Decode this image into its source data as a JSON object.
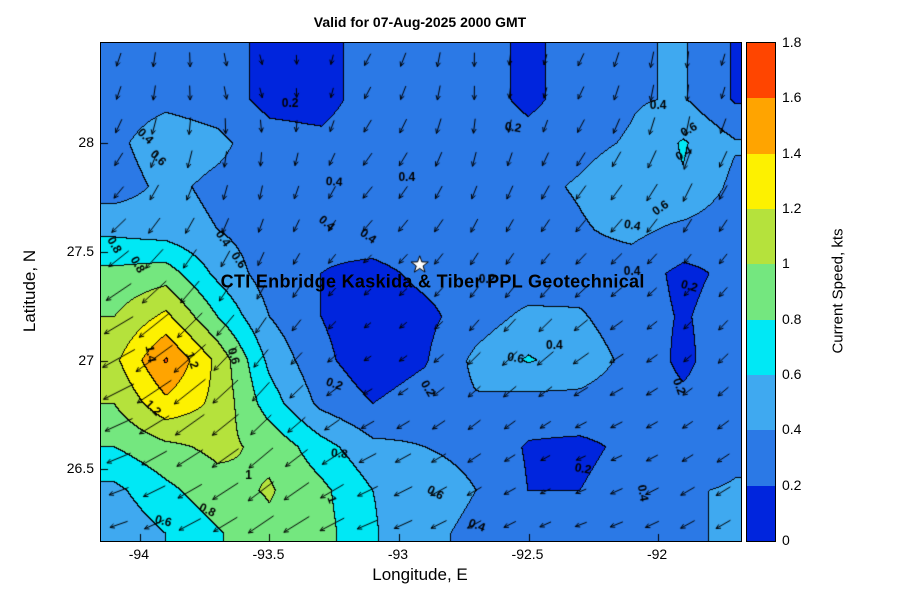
{
  "chart_data": {
    "type": "heatmap",
    "subtype": "filled-contour-with-quiver",
    "title": "Valid for 07-Aug-2025 2000 GMT",
    "xlabel": "Longitude, E",
    "ylabel": "Latitude, N",
    "units": "kts",
    "xlim": [
      -94.15,
      -91.68
    ],
    "ylim": [
      26.17,
      28.46
    ],
    "x_ticks": {
      "values": [
        -94,
        -93.5,
        -93,
        -92.5,
        -92
      ],
      "labels": [
        "-94",
        "-93.5",
        "-93",
        "-92.5",
        "-92"
      ]
    },
    "y_ticks": {
      "values": [
        26.5,
        27,
        27.5,
        28
      ],
      "labels": [
        "26.5",
        "27",
        "27.5",
        "28"
      ]
    },
    "levels": [
      0,
      0.2,
      0.4,
      0.6,
      0.8,
      1.0,
      1.2,
      1.4,
      1.6,
      1.8
    ],
    "colors": [
      "#0025dd",
      "#2b79e6",
      "#3fa9f0",
      "#00e8f5",
      "#74e77f",
      "#b5e23c",
      "#fdf100",
      "#ffa400",
      "#ff4500"
    ],
    "grid": {
      "lons": [
        -94.1,
        -93.9,
        -93.7,
        -93.5,
        -93.3,
        -93.1,
        -92.9,
        -92.7,
        -92.5,
        -92.3,
        -92.1,
        -91.9,
        -91.7
      ],
      "lats": [
        28.2,
        28.0,
        27.8,
        27.6,
        27.4,
        27.2,
        27.0,
        26.8,
        26.6,
        26.4,
        26.2
      ],
      "speed_kts": [
        [
          0.3,
          0.35,
          0.3,
          0.14,
          0.12,
          0.3,
          0.35,
          0.3,
          0.15,
          0.3,
          0.38,
          0.42,
          0.18
        ],
        [
          0.35,
          0.52,
          0.45,
          0.28,
          0.25,
          0.35,
          0.4,
          0.35,
          0.28,
          0.35,
          0.42,
          0.62,
          0.42
        ],
        [
          0.3,
          0.45,
          0.35,
          0.3,
          0.3,
          0.35,
          0.32,
          0.3,
          0.35,
          0.42,
          0.52,
          0.58,
          0.35
        ],
        [
          0.55,
          0.5,
          0.4,
          0.3,
          0.26,
          0.32,
          0.35,
          0.35,
          0.3,
          0.38,
          0.45,
          0.35,
          0.28
        ],
        [
          0.85,
          0.9,
          0.55,
          0.3,
          0.2,
          0.14,
          0.25,
          0.3,
          0.25,
          0.32,
          0.3,
          0.15,
          0.25
        ],
        [
          1.0,
          1.25,
          0.8,
          0.4,
          0.2,
          0.08,
          0.15,
          0.3,
          0.45,
          0.42,
          0.3,
          0.18,
          0.3
        ],
        [
          1.15,
          1.62,
          1.15,
          0.55,
          0.25,
          0.08,
          0.18,
          0.45,
          0.62,
          0.5,
          0.35,
          0.15,
          0.35
        ],
        [
          1.0,
          1.35,
          1.15,
          0.7,
          0.35,
          0.2,
          0.3,
          0.38,
          0.32,
          0.35,
          0.3,
          0.25,
          0.3
        ],
        [
          0.8,
          0.95,
          1.05,
          0.95,
          0.68,
          0.45,
          0.4,
          0.35,
          0.18,
          0.15,
          0.25,
          0.22,
          0.35
        ],
        [
          0.55,
          0.75,
          0.92,
          1.02,
          0.85,
          0.6,
          0.5,
          0.4,
          0.2,
          0.2,
          0.3,
          0.38,
          0.42
        ],
        [
          0.45,
          0.6,
          0.78,
          0.95,
          0.88,
          0.62,
          0.45,
          0.35,
          0.25,
          0.25,
          0.32,
          0.38,
          0.42
        ]
      ],
      "flow_dir_deg_ccw_from_east": [
        [
          250,
          265,
          280,
          285,
          260,
          240,
          255,
          270,
          260,
          245,
          255,
          265,
          250
        ],
        [
          240,
          255,
          265,
          270,
          250,
          235,
          245,
          260,
          250,
          240,
          245,
          255,
          245
        ],
        [
          230,
          245,
          255,
          260,
          245,
          230,
          240,
          250,
          245,
          235,
          235,
          245,
          240
        ],
        [
          222,
          235,
          245,
          250,
          238,
          228,
          232,
          242,
          238,
          230,
          228,
          238,
          235
        ],
        [
          215,
          228,
          238,
          245,
          232,
          222,
          228,
          235,
          232,
          225,
          222,
          230,
          230
        ],
        [
          210,
          222,
          230,
          238,
          228,
          218,
          222,
          230,
          228,
          220,
          215,
          225,
          228
        ],
        [
          208,
          218,
          225,
          232,
          222,
          212,
          218,
          225,
          222,
          215,
          212,
          220,
          225
        ],
        [
          205,
          215,
          220,
          228,
          218,
          210,
          215,
          220,
          218,
          210,
          208,
          215,
          220
        ],
        [
          202,
          212,
          215,
          222,
          215,
          208,
          210,
          215,
          212,
          205,
          205,
          212,
          215
        ],
        [
          200,
          208,
          212,
          218,
          212,
          205,
          208,
          210,
          208,
          202,
          205,
          210,
          212
        ],
        [
          198,
          205,
          210,
          214,
          208,
          202,
          205,
          208,
          205,
          200,
          202,
          208,
          210
        ]
      ]
    },
    "quiver": {
      "cols": 18,
      "rows": 15
    },
    "contour_labels": [
      {
        "t": "0.2",
        "lon": -93.42,
        "lat": 28.18,
        "rot": 0
      },
      {
        "t": "0.2",
        "lon": -92.56,
        "lat": 28.07,
        "rot": 10
      },
      {
        "t": "0.4",
        "lon": -92.0,
        "lat": 28.17,
        "rot": 0
      },
      {
        "t": "0.6",
        "lon": -91.88,
        "lat": 28.06,
        "rot": -30
      },
      {
        "t": "0.4",
        "lon": -91.9,
        "lat": 27.95,
        "rot": -30
      },
      {
        "t": "0.4",
        "lon": -93.98,
        "lat": 28.03,
        "rot": 45
      },
      {
        "t": "0.6",
        "lon": -93.93,
        "lat": 27.93,
        "rot": 45
      },
      {
        "t": "0.4",
        "lon": -93.25,
        "lat": 27.82,
        "rot": 5
      },
      {
        "t": "0.4",
        "lon": -92.97,
        "lat": 27.84,
        "rot": 0
      },
      {
        "t": "0.4",
        "lon": -92.1,
        "lat": 27.62,
        "rot": 10
      },
      {
        "t": "0.6",
        "lon": -91.99,
        "lat": 27.7,
        "rot": -35
      },
      {
        "t": "0.4",
        "lon": -93.28,
        "lat": 27.63,
        "rot": 40
      },
      {
        "t": "0.4",
        "lon": -93.12,
        "lat": 27.57,
        "rot": 35
      },
      {
        "t": "0.8",
        "lon": -94.1,
        "lat": 27.53,
        "rot": 60
      },
      {
        "t": "0.8",
        "lon": -94.01,
        "lat": 27.44,
        "rot": 60
      },
      {
        "t": "0.4",
        "lon": -93.68,
        "lat": 27.56,
        "rot": 55
      },
      {
        "t": "0.6",
        "lon": -93.62,
        "lat": 27.46,
        "rot": 55
      },
      {
        "t": "0.2",
        "lon": -92.66,
        "lat": 27.37,
        "rot": 0
      },
      {
        "t": "0.4",
        "lon": -92.1,
        "lat": 27.41,
        "rot": 0
      },
      {
        "t": "0.2",
        "lon": -91.88,
        "lat": 27.34,
        "rot": 15
      },
      {
        "t": "1.4",
        "lon": -93.96,
        "lat": 27.03,
        "rot": 80
      },
      {
        "t": "1.2",
        "lon": -93.8,
        "lat": 27.0,
        "rot": 70
      },
      {
        "t": "0.6",
        "lon": -93.64,
        "lat": 27.02,
        "rot": 75
      },
      {
        "t": "1.2",
        "lon": -93.95,
        "lat": 26.78,
        "rot": 45
      },
      {
        "t": "0.2",
        "lon": -93.25,
        "lat": 26.89,
        "rot": 20
      },
      {
        "t": "0.2",
        "lon": -92.89,
        "lat": 26.87,
        "rot": 60
      },
      {
        "t": "0.6",
        "lon": -92.55,
        "lat": 27.01,
        "rot": 10
      },
      {
        "t": "0.4",
        "lon": -92.4,
        "lat": 27.07,
        "rot": 0
      },
      {
        "t": "0.2",
        "lon": -91.92,
        "lat": 26.88,
        "rot": 70
      },
      {
        "t": "0.8",
        "lon": -93.23,
        "lat": 26.57,
        "rot": 5
      },
      {
        "t": "1",
        "lon": -93.58,
        "lat": 26.47,
        "rot": 0
      },
      {
        "t": "1",
        "lon": -93.26,
        "lat": 26.36,
        "rot": 70
      },
      {
        "t": "0.6",
        "lon": -92.86,
        "lat": 26.39,
        "rot": 30
      },
      {
        "t": "0.4",
        "lon": -92.7,
        "lat": 26.24,
        "rot": 20
      },
      {
        "t": "0.2",
        "lon": -92.29,
        "lat": 26.5,
        "rot": 10
      },
      {
        "t": "0.4",
        "lon": -92.06,
        "lat": 26.39,
        "rot": 80
      },
      {
        "t": "0.6",
        "lon": -93.91,
        "lat": 26.26,
        "rot": 15
      },
      {
        "t": "0.8",
        "lon": -93.74,
        "lat": 26.31,
        "rot": 25
      }
    ],
    "annotation": {
      "text": "CTI Enbridge  Kaskida & Tiber PPL Geotechnical",
      "lon": -92.87,
      "lat": 27.36
    },
    "star_marker": {
      "lon": -92.92,
      "lat": 27.44
    },
    "colorbar": {
      "label": "Current Speed, kts",
      "ticks": {
        "values": [
          0,
          0.2,
          0.4,
          0.6,
          0.8,
          1.0,
          1.2,
          1.4,
          1.6,
          1.8
        ],
        "labels": [
          "0",
          "0.2",
          "0.4",
          "0.6",
          "0.8",
          "1",
          "1.2",
          "1.4",
          "1.6",
          "1.8"
        ]
      },
      "position": "right"
    },
    "legend": "none",
    "grid_lines": "off"
  }
}
